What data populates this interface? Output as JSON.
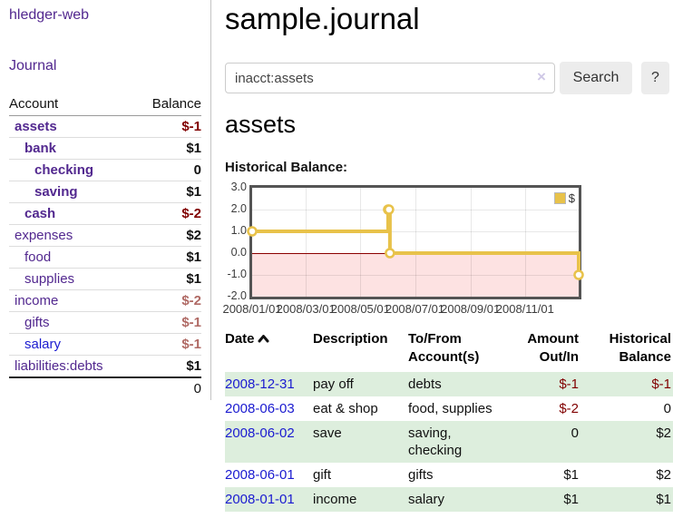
{
  "colors": {
    "link_purple": "#52288f",
    "link_blue": "#1b1bd0",
    "negative_strong": "#800000",
    "negative_light": "#b06a65",
    "row_green": "#ddeedd",
    "chart_line_gold": "#e8c24a",
    "chart_negative_fill": "#f9d9d9",
    "chart_zero_line": "#8b0000",
    "button_bg": "#ececec"
  },
  "sidebar": {
    "app_title": "hledger-web",
    "nav_journal": "Journal",
    "accounts_table": {
      "headers": [
        "Account",
        "Balance"
      ],
      "rows": [
        {
          "account": "assets",
          "depth": 0,
          "balance": "$-1",
          "bold": true,
          "neg": "strong"
        },
        {
          "account": "bank",
          "depth": 1,
          "balance": "$1",
          "bold": true
        },
        {
          "account": "checking",
          "depth": 2,
          "balance": "0",
          "bold": true
        },
        {
          "account": "saving",
          "depth": 2,
          "balance": "$1",
          "bold": true
        },
        {
          "account": "cash",
          "depth": 1,
          "balance": "$-2",
          "bold": true,
          "neg": "strong"
        },
        {
          "account": "expenses",
          "depth": 0,
          "balance": "$2"
        },
        {
          "account": "food",
          "depth": 1,
          "balance": "$1"
        },
        {
          "account": "supplies",
          "depth": 1,
          "balance": "$1"
        },
        {
          "account": "income",
          "depth": 0,
          "balance": "$-2",
          "neg": "light"
        },
        {
          "account": "gifts",
          "depth": 1,
          "balance": "$-1",
          "neg": "light"
        },
        {
          "account": "salary",
          "depth": 1,
          "balance": "$-1",
          "neg": "light",
          "link_color": "blue"
        },
        {
          "account": "liabilities:debts",
          "depth": 0,
          "balance": "$1"
        }
      ],
      "total": "0"
    }
  },
  "main": {
    "title": "sample.journal",
    "search": {
      "value": "inacct:assets",
      "clear_icon": "×",
      "button": "Search",
      "help": "?"
    },
    "account_heading": "assets",
    "section_label": "Historical Balance:"
  },
  "chart_data": {
    "type": "line",
    "step": true,
    "title": "Historical Balance:",
    "series": [
      {
        "name": "$",
        "points": [
          [
            "2008-01-01",
            1
          ],
          [
            "2008-06-01",
            2
          ],
          [
            "2008-06-02",
            2
          ],
          [
            "2008-06-03",
            0
          ],
          [
            "2008-12-31",
            -1
          ]
        ]
      }
    ],
    "x_range": [
      "2008-01-01",
      "2008-12-31"
    ],
    "x_ticks": [
      "2008/01/01",
      "2008/03/01",
      "2008/05/01",
      "2008/07/01",
      "2008/09/01",
      "2008/11/01"
    ],
    "y_ticks": [
      3.0,
      2.0,
      1.0,
      0.0,
      -1.0,
      -2.0
    ],
    "ylim": [
      -2,
      3
    ],
    "grid": true,
    "legend": {
      "label": "$",
      "position": "top-right"
    },
    "negative_region_below": 0
  },
  "register": {
    "headers": {
      "date": "Date",
      "description": "Description",
      "accounts": "To/From Account(s)",
      "amount": "Amount Out/In",
      "balance": "Historical Balance"
    },
    "sort": "ascending",
    "rows": [
      {
        "date": "2008-12-31",
        "description": "pay off",
        "accounts": "debts",
        "amount": "$-1",
        "balance": "$-1"
      },
      {
        "date": "2008-06-03",
        "description": "eat & shop",
        "accounts": "food, supplies",
        "amount": "$-2",
        "balance": "0"
      },
      {
        "date": "2008-06-02",
        "description": "save",
        "accounts": "saving, checking",
        "amount": "0",
        "balance": "$2"
      },
      {
        "date": "2008-06-01",
        "description": "gift",
        "accounts": "gifts",
        "amount": "$1",
        "balance": "$2"
      },
      {
        "date": "2008-01-01",
        "description": "income",
        "accounts": "salary",
        "amount": "$1",
        "balance": "$1"
      }
    ]
  }
}
